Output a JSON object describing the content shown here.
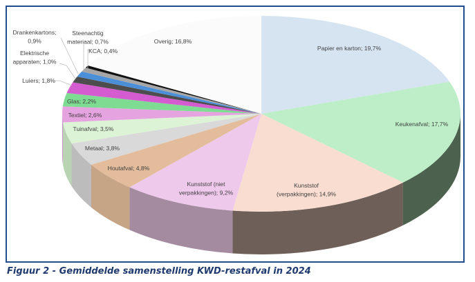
{
  "caption": "Figuur 2 - Gemiddelde samenstelling KWD-restafval in 2024",
  "chart_data": {
    "type": "pie",
    "style": "3d",
    "title": "",
    "legend": "none",
    "unit": "%",
    "slices": [
      {
        "name": "Papier en karton",
        "value": 19.7,
        "label": "Papier en karton; 19,7%",
        "color": "#d6e4f2",
        "side": "#b4c2d0"
      },
      {
        "name": "Keukenafval",
        "value": 17.7,
        "label": "Keukenafval; 17,7%",
        "color": "#bdeec7",
        "side": "#4c614e"
      },
      {
        "name": "Kunststof (verpakkingen)",
        "value": 14.9,
        "label_lines": [
          "Kunststof",
          "(verpakkingen); 14,9%"
        ],
        "color": "#f9ddd1",
        "side": "#6e6058"
      },
      {
        "name": "Kunststof (niet verpakkingen)",
        "value": 9.2,
        "label_lines": [
          "Kunststof (niet",
          "verpakkingen); 9,2%"
        ],
        "color": "#efc9ec",
        "side": "#a58ba0"
      },
      {
        "name": "Houtafval",
        "value": 4.8,
        "label": "Houtafval; 4,8%",
        "color": "#e3bc9b",
        "side": "#c6a486"
      },
      {
        "name": "Metaal",
        "value": 3.8,
        "label": "Metaal; 3,8%",
        "color": "#d9d9d9",
        "side": "#bcbcbc"
      },
      {
        "name": "Tuinafval",
        "value": 3.5,
        "label": "Tuinafval; 3,5%",
        "color": "#dcf3d6",
        "side": "#b9d4b3"
      },
      {
        "name": "Textiel",
        "value": 2.6,
        "label": "Textiel; 2,6%",
        "color": "#e5a3e0",
        "side": "#c68dc2"
      },
      {
        "name": "Glas",
        "value": 2.2,
        "label": "Glas; 2,2%",
        "color": "#7ddc92",
        "side": "#6bbd7e"
      },
      {
        "name": "Luiers",
        "value": 1.8,
        "label": "Luiers; 1,8%",
        "color": "#d45bd0",
        "side": "#b54eb1"
      },
      {
        "name": "Elektrische apparaten",
        "value": 1.0,
        "label_lines": [
          "Elektrische",
          "apparaten; 1,0%"
        ],
        "color": "#4d4d4d",
        "side": "#3f3f3f"
      },
      {
        "name": "Drankenkartons",
        "value": 0.9,
        "label_lines": [
          "Drankenkartons;",
          "0,9%"
        ],
        "color": "#4a8fd8",
        "side": "#3d78b8"
      },
      {
        "name": "Steenachtig materiaal",
        "value": 0.7,
        "label_lines": [
          "Steenachtig",
          "materiaal; 0,7%"
        ],
        "color": "#a6a6a6",
        "side": "#8e8e8e"
      },
      {
        "name": "KCA",
        "value": 0.4,
        "label": "KCA; 0,4%",
        "color": "#111111",
        "side": "#000000"
      },
      {
        "name": "Overig",
        "value": 16.8,
        "label": "Overig; 16,8%",
        "color": "#fbfbfb",
        "side": "#e6e6e6"
      }
    ]
  }
}
